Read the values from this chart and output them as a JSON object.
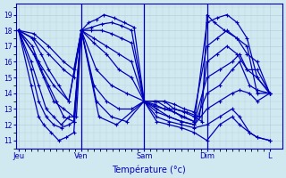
{
  "xlabel": "Température (°c)",
  "bg_color": "#d0e8f0",
  "grid_color": "#b8d0dc",
  "line_color": "#0000bb",
  "marker": "+",
  "ylim": [
    10.5,
    19.7
  ],
  "yticks": [
    11,
    12,
    13,
    14,
    15,
    16,
    17,
    18,
    19
  ],
  "day_labels": [
    "Jeu",
    "Ven",
    "Sam",
    "Dim",
    "L"
  ],
  "day_positions": [
    0.0,
    0.25,
    0.5,
    0.75,
    1.0
  ],
  "series": [
    {
      "points": [
        [
          0,
          18
        ],
        [
          0.055,
          17
        ],
        [
          0.09,
          15.5
        ],
        [
          0.12,
          14.5
        ],
        [
          0.15,
          13.5
        ],
        [
          0.18,
          12.5
        ],
        [
          0.22,
          12.2
        ],
        [
          0.25,
          18
        ],
        [
          0.28,
          18.5
        ],
        [
          0.31,
          18.7
        ],
        [
          0.34,
          19.0
        ],
        [
          0.38,
          18.8
        ],
        [
          0.42,
          18.5
        ],
        [
          0.46,
          18.2
        ],
        [
          0.5,
          13.5
        ],
        [
          0.54,
          13.2
        ],
        [
          0.58,
          13.0
        ],
        [
          0.62,
          13.0
        ],
        [
          0.66,
          12.8
        ],
        [
          0.7,
          12.5
        ],
        [
          0.73,
          12.2
        ],
        [
          0.75,
          19.0
        ],
        [
          0.78,
          18.5
        ],
        [
          0.82,
          18.0
        ],
        [
          0.87,
          17.5
        ],
        [
          0.91,
          17.0
        ],
        [
          0.95,
          14.0
        ],
        [
          1.0,
          14.0
        ]
      ]
    },
    {
      "points": [
        [
          0,
          18
        ],
        [
          0.055,
          17.5
        ],
        [
          0.09,
          16.5
        ],
        [
          0.12,
          15.5
        ],
        [
          0.16,
          14.5
        ],
        [
          0.2,
          13.5
        ],
        [
          0.25,
          18
        ],
        [
          0.29,
          18.2
        ],
        [
          0.33,
          18.4
        ],
        [
          0.37,
          18.5
        ],
        [
          0.41,
          18.3
        ],
        [
          0.45,
          18.0
        ],
        [
          0.5,
          13.5
        ],
        [
          0.54,
          13.3
        ],
        [
          0.58,
          13.0
        ],
        [
          0.62,
          12.8
        ],
        [
          0.66,
          12.5
        ],
        [
          0.7,
          12.2
        ],
        [
          0.75,
          18.5
        ],
        [
          0.79,
          18.8
        ],
        [
          0.83,
          19.0
        ],
        [
          0.87,
          18.5
        ],
        [
          0.91,
          17.5
        ],
        [
          0.95,
          15.0
        ],
        [
          1.0,
          14.0
        ]
      ]
    },
    {
      "points": [
        [
          0,
          18
        ],
        [
          0.06,
          17.8
        ],
        [
          0.12,
          17.0
        ],
        [
          0.18,
          16.0
        ],
        [
          0.22,
          15.5
        ],
        [
          0.25,
          18
        ],
        [
          0.29,
          18.0
        ],
        [
          0.33,
          18.0
        ],
        [
          0.37,
          17.8
        ],
        [
          0.41,
          17.5
        ],
        [
          0.45,
          17.2
        ],
        [
          0.5,
          13.5
        ],
        [
          0.54,
          13.5
        ],
        [
          0.58,
          13.5
        ],
        [
          0.62,
          13.3
        ],
        [
          0.66,
          13.0
        ],
        [
          0.7,
          12.8
        ],
        [
          0.75,
          17.0
        ],
        [
          0.79,
          17.5
        ],
        [
          0.83,
          18.0
        ],
        [
          0.87,
          17.5
        ],
        [
          0.91,
          16.5
        ],
        [
          0.95,
          16.0
        ],
        [
          1.0,
          14.0
        ]
      ]
    },
    {
      "points": [
        [
          0,
          18
        ],
        [
          0.06,
          17.5
        ],
        [
          0.12,
          16.5
        ],
        [
          0.18,
          15.5
        ],
        [
          0.22,
          15.0
        ],
        [
          0.25,
          18
        ],
        [
          0.3,
          17.5
        ],
        [
          0.35,
          17.0
        ],
        [
          0.4,
          16.5
        ],
        [
          0.45,
          16.0
        ],
        [
          0.5,
          13.5
        ],
        [
          0.54,
          13.5
        ],
        [
          0.58,
          13.5
        ],
        [
          0.62,
          13.0
        ],
        [
          0.67,
          12.8
        ],
        [
          0.72,
          12.5
        ],
        [
          0.75,
          16.0
        ],
        [
          0.79,
          16.5
        ],
        [
          0.83,
          17.0
        ],
        [
          0.87,
          16.5
        ],
        [
          0.91,
          15.5
        ],
        [
          0.95,
          15.5
        ],
        [
          1.0,
          14.0
        ]
      ]
    },
    {
      "points": [
        [
          0,
          18
        ],
        [
          0.08,
          16.0
        ],
        [
          0.14,
          14.5
        ],
        [
          0.2,
          13.5
        ],
        [
          0.25,
          18
        ],
        [
          0.3,
          17.2
        ],
        [
          0.35,
          16.5
        ],
        [
          0.4,
          15.5
        ],
        [
          0.45,
          15.0
        ],
        [
          0.5,
          13.5
        ],
        [
          0.55,
          13.5
        ],
        [
          0.6,
          13.0
        ],
        [
          0.65,
          12.5
        ],
        [
          0.7,
          12.2
        ],
        [
          0.75,
          15.0
        ],
        [
          0.8,
          15.5
        ],
        [
          0.85,
          16.0
        ],
        [
          0.88,
          16.5
        ],
        [
          0.91,
          15.5
        ],
        [
          0.95,
          15.0
        ],
        [
          1.0,
          14.0
        ]
      ]
    },
    {
      "points": [
        [
          0,
          18
        ],
        [
          0.06,
          16.5
        ],
        [
          0.1,
          15.0
        ],
        [
          0.14,
          13.5
        ],
        [
          0.18,
          13.0
        ],
        [
          0.22,
          12.5
        ],
        [
          0.25,
          18
        ],
        [
          0.31,
          15.5
        ],
        [
          0.37,
          14.5
        ],
        [
          0.43,
          14.0
        ],
        [
          0.5,
          13.5
        ],
        [
          0.55,
          13.0
        ],
        [
          0.6,
          12.5
        ],
        [
          0.65,
          12.2
        ],
        [
          0.7,
          12.0
        ],
        [
          0.75,
          14.0
        ],
        [
          0.8,
          14.5
        ],
        [
          0.85,
          15.5
        ],
        [
          0.88,
          16.0
        ],
        [
          0.92,
          14.5
        ],
        [
          0.95,
          14.2
        ],
        [
          1.0,
          14.0
        ]
      ]
    },
    {
      "points": [
        [
          0,
          18
        ],
        [
          0.05,
          16.0
        ],
        [
          0.08,
          14.5
        ],
        [
          0.11,
          13.0
        ],
        [
          0.14,
          12.5
        ],
        [
          0.17,
          12.0
        ],
        [
          0.2,
          12.5
        ],
        [
          0.23,
          12.5
        ],
        [
          0.25,
          18
        ],
        [
          0.3,
          14.5
        ],
        [
          0.35,
          13.5
        ],
        [
          0.4,
          13.0
        ],
        [
          0.45,
          13.0
        ],
        [
          0.5,
          13.5
        ],
        [
          0.55,
          12.8
        ],
        [
          0.6,
          12.5
        ],
        [
          0.65,
          12.2
        ],
        [
          0.7,
          12.0
        ],
        [
          0.75,
          13.0
        ],
        [
          0.8,
          13.5
        ],
        [
          0.85,
          14.0
        ],
        [
          0.88,
          14.2
        ],
        [
          0.92,
          14.0
        ],
        [
          0.95,
          13.5
        ],
        [
          1.0,
          14.0
        ]
      ]
    },
    {
      "points": [
        [
          0,
          18
        ],
        [
          0.05,
          15.5
        ],
        [
          0.08,
          13.5
        ],
        [
          0.11,
          12.5
        ],
        [
          0.14,
          12.0
        ],
        [
          0.17,
          11.8
        ],
        [
          0.2,
          12.0
        ],
        [
          0.22,
          12.2
        ],
        [
          0.25,
          18
        ],
        [
          0.31,
          13.5
        ],
        [
          0.37,
          12.5
        ],
        [
          0.43,
          12.2
        ],
        [
          0.5,
          13.5
        ],
        [
          0.55,
          12.5
        ],
        [
          0.6,
          12.2
        ],
        [
          0.65,
          12.0
        ],
        [
          0.7,
          11.8
        ],
        [
          0.75,
          12.0
        ],
        [
          0.8,
          12.5
        ],
        [
          0.85,
          13.0
        ],
        [
          0.88,
          12.5
        ],
        [
          0.92,
          11.5
        ],
        [
          0.95,
          11.2
        ],
        [
          1.0,
          11.0
        ]
      ]
    },
    {
      "points": [
        [
          0,
          18
        ],
        [
          0.05,
          14.5
        ],
        [
          0.08,
          12.5
        ],
        [
          0.1,
          12.0
        ],
        [
          0.13,
          11.5
        ],
        [
          0.16,
          11.0
        ],
        [
          0.19,
          11.2
        ],
        [
          0.22,
          11.5
        ],
        [
          0.25,
          18
        ],
        [
          0.32,
          12.5
        ],
        [
          0.39,
          12.0
        ],
        [
          0.5,
          13.5
        ],
        [
          0.55,
          12.2
        ],
        [
          0.6,
          12.0
        ],
        [
          0.65,
          11.8
        ],
        [
          0.7,
          11.5
        ],
        [
          0.75,
          11.0
        ],
        [
          0.8,
          12.0
        ],
        [
          0.85,
          12.5
        ],
        [
          0.88,
          12.0
        ],
        [
          0.92,
          11.5
        ],
        [
          0.95,
          11.2
        ],
        [
          1.0,
          11.0
        ]
      ]
    }
  ]
}
